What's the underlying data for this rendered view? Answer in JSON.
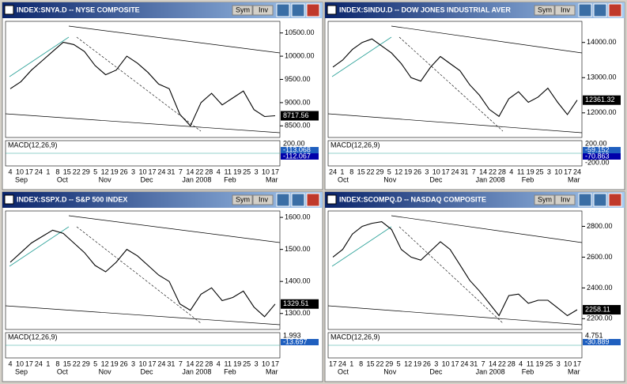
{
  "panels": [
    {
      "title": "INDEX:SNYA.D -- NYSE COMPOSITE",
      "buttons": [
        "Sym",
        "Inv"
      ],
      "ylim": [
        8250,
        10750
      ],
      "yticks": [
        {
          "value": 10500,
          "label": "10500.00"
        },
        {
          "value": 10000,
          "label": "10000.00"
        },
        {
          "value": 9500,
          "label": "9500.00"
        },
        {
          "value": 9000,
          "label": "9000.00"
        },
        {
          "value": 8500,
          "label": "8500.00"
        }
      ],
      "closes": [
        9300,
        9450,
        9700,
        9900,
        10100,
        10300,
        10250,
        10100,
        9800,
        9600,
        9700,
        10000,
        9850,
        9650,
        9400,
        9300,
        8750,
        8500,
        9000,
        9200,
        8950,
        9100,
        9250,
        8850,
        8700,
        8717.56
      ],
      "last": 8717.56,
      "macd_label": "MACD(12,26,9)",
      "macd_values": [
        {
          "value": 200,
          "label": "200.00"
        },
        -113.068,
        -112.067
      ],
      "days": [
        "4",
        "10",
        "17",
        "24",
        "1",
        "8",
        "15",
        "22",
        "29",
        "5",
        "12",
        "19",
        "26",
        "3",
        "10",
        "17",
        "24",
        "31",
        "7",
        "14",
        "22",
        "28",
        "4",
        "11",
        "19",
        "25",
        "3",
        "10",
        "17"
      ],
      "months": [
        "Sep",
        "Oct",
        "Nov",
        "Dec",
        "Jan 2008",
        "Feb",
        "Mar"
      ]
    },
    {
      "title": "INDEX:SINDU.D -- DOW JONES INDUSTRIAL AVER",
      "buttons": [
        "Sym",
        "Inv"
      ],
      "ylim": [
        11300,
        14600
      ],
      "yticks": [
        {
          "value": 14000,
          "label": "14000.00"
        },
        {
          "value": 13000,
          "label": "13000.00"
        },
        {
          "value": 12000,
          "label": "12000.00"
        }
      ],
      "closes": [
        13300,
        13500,
        13800,
        14000,
        14100,
        13900,
        13700,
        13400,
        13000,
        12900,
        13300,
        13600,
        13400,
        13200,
        12800,
        12500,
        12100,
        11900,
        12400,
        12600,
        12300,
        12450,
        12700,
        12300,
        11950,
        12361.32
      ],
      "last": 12361.32,
      "macd_label": "MACD(12,26,9)",
      "macd_values": [
        {
          "value": 200,
          "label": "200.00"
        },
        -59.152,
        -70.863,
        {
          "value": -200,
          "label": "-200.00"
        }
      ],
      "days": [
        "24",
        "1",
        "8",
        "15",
        "22",
        "29",
        "5",
        "12",
        "19",
        "26",
        "3",
        "10",
        "17",
        "24",
        "31",
        "7",
        "14",
        "22",
        "28",
        "4",
        "11",
        "19",
        "25",
        "3",
        "10",
        "17",
        "24"
      ],
      "months": [
        "Oct",
        "Nov",
        "Dec",
        "Jan 2008",
        "Feb",
        "Mar"
      ]
    },
    {
      "title": "INDEX:SSPX.D -- S&P 500 INDEX",
      "buttons": [
        "Sym",
        "Inv"
      ],
      "ylim": [
        1250,
        1620
      ],
      "yticks": [
        {
          "value": 1600,
          "label": "1600.00"
        },
        {
          "value": 1500,
          "label": "1500.00"
        },
        {
          "value": 1400,
          "label": "1400.00"
        },
        {
          "value": 1300,
          "label": "1300.00"
        }
      ],
      "closes": [
        1460,
        1490,
        1520,
        1540,
        1560,
        1550,
        1520,
        1490,
        1450,
        1430,
        1460,
        1500,
        1480,
        1450,
        1420,
        1400,
        1330,
        1310,
        1360,
        1380,
        1340,
        1350,
        1370,
        1320,
        1290,
        1329.51
      ],
      "last": 1329.51,
      "macd_label": "MACD(12,26,9)",
      "macd_values": [
        1.993,
        -13.697
      ],
      "days": [
        "4",
        "10",
        "17",
        "24",
        "1",
        "8",
        "15",
        "22",
        "29",
        "5",
        "12",
        "19",
        "26",
        "3",
        "10",
        "17",
        "24",
        "31",
        "7",
        "14",
        "22",
        "28",
        "4",
        "11",
        "19",
        "25",
        "3",
        "10",
        "17"
      ],
      "months": [
        "Sep",
        "Oct",
        "Nov",
        "Dec",
        "Jan 2008",
        "Feb",
        "Mar"
      ]
    },
    {
      "title": "INDEX:SCOMPQ.D -- NASDAQ COMPOSITE",
      "buttons": [
        "Sym",
        "Inv"
      ],
      "ylim": [
        2130,
        2900
      ],
      "yticks": [
        {
          "value": 2800,
          "label": "2800.00"
        },
        {
          "value": 2600,
          "label": "2600.00"
        },
        {
          "value": 2400,
          "label": "2400.00"
        },
        {
          "value": 2200,
          "label": "2200.00"
        }
      ],
      "closes": [
        2600,
        2650,
        2750,
        2800,
        2820,
        2830,
        2780,
        2650,
        2600,
        2580,
        2640,
        2700,
        2650,
        2550,
        2450,
        2380,
        2300,
        2220,
        2350,
        2360,
        2300,
        2320,
        2320,
        2270,
        2220,
        2258.11
      ],
      "last": 2258.11,
      "macd_label": "MACD(12,26,9)",
      "macd_values": [
        4.751,
        -30.889
      ],
      "days": [
        "17",
        "24",
        "1",
        "8",
        "15",
        "22",
        "29",
        "5",
        "12",
        "19",
        "26",
        "3",
        "10",
        "17",
        "24",
        "31",
        "7",
        "14",
        "22",
        "28",
        "4",
        "11",
        "19",
        "25",
        "3",
        "10",
        "17"
      ],
      "months": [
        "Oct",
        "Nov",
        "Dec",
        "Jan 2008",
        "Feb",
        "Mar"
      ]
    }
  ]
}
